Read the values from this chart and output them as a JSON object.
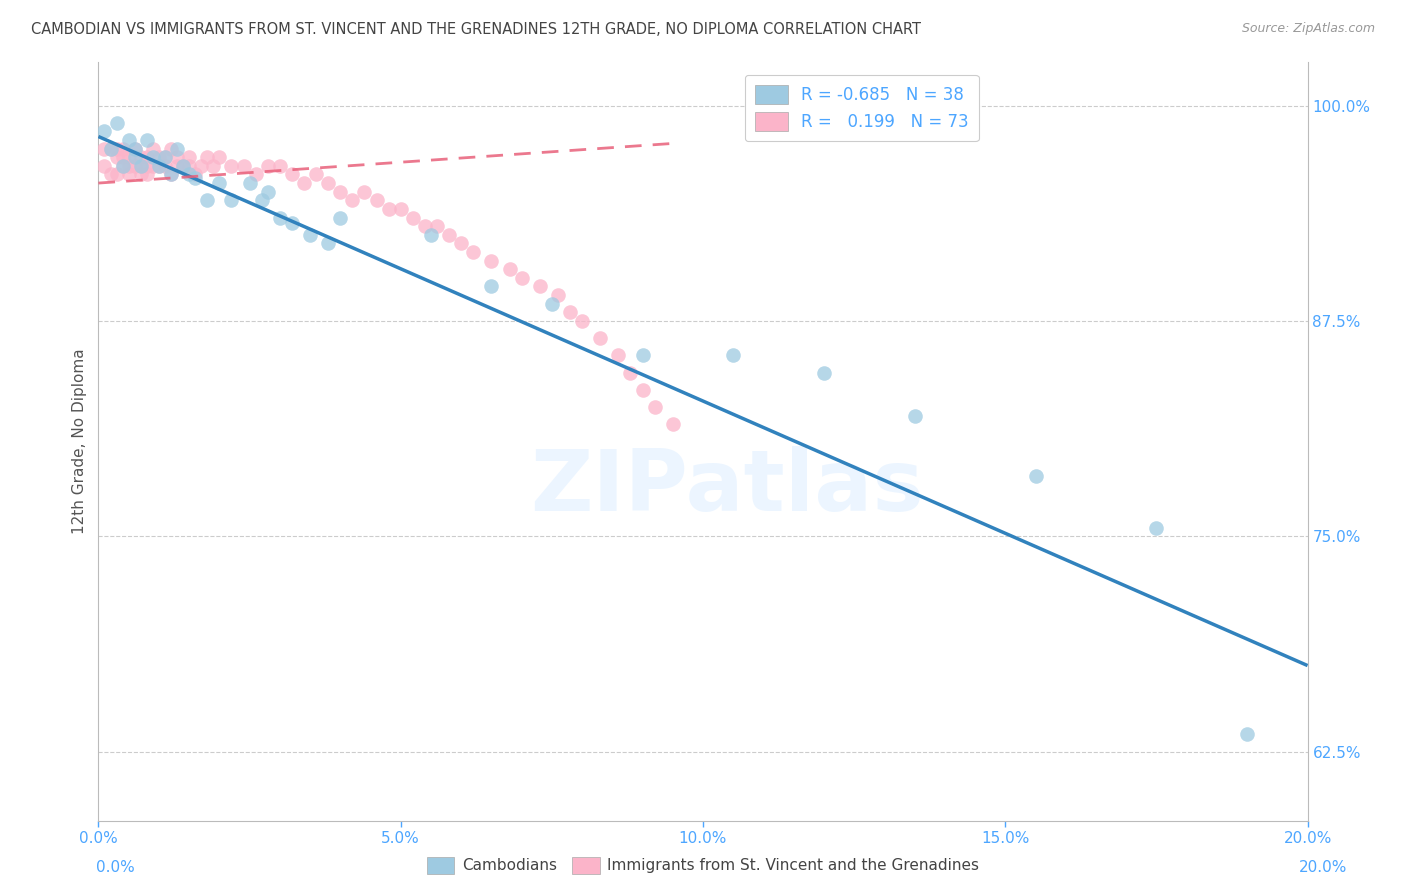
{
  "title": "CAMBODIAN VS IMMIGRANTS FROM ST. VINCENT AND THE GRENADINES 12TH GRADE, NO DIPLOMA CORRELATION CHART",
  "source": "Source: ZipAtlas.com",
  "ylabel": "12th Grade, No Diploma",
  "xlim": [
    0.0,
    0.2
  ],
  "ylim": [
    0.585,
    1.025
  ],
  "yticks": [
    0.625,
    0.75,
    0.875,
    1.0
  ],
  "ytick_labels": [
    "62.5%",
    "75.0%",
    "87.5%",
    "100.0%"
  ],
  "xticks": [
    0.0,
    0.05,
    0.1,
    0.15,
    0.2
  ],
  "xtick_labels": [
    "0.0%",
    "5.0%",
    "10.0%",
    "15.0%",
    "20.0%"
  ],
  "cambodian_R": -0.685,
  "cambodian_N": 38,
  "svg_R": 0.199,
  "svg_N": 73,
  "cambodian_color": "#9ecae1",
  "svg_color": "#fbb4c9",
  "cambodian_line_color": "#3182bd",
  "svg_line_color": "#e8607a",
  "background_color": "#ffffff",
  "grid_color": "#cccccc",
  "title_color": "#444444",
  "axis_color": "#4da6ff",
  "watermark": "ZIPatlas",
  "cam_scatter_x": [
    0.001,
    0.002,
    0.003,
    0.004,
    0.005,
    0.006,
    0.006,
    0.007,
    0.008,
    0.009,
    0.01,
    0.011,
    0.012,
    0.013,
    0.014,
    0.015,
    0.016,
    0.018,
    0.02,
    0.022,
    0.025,
    0.027,
    0.028,
    0.03,
    0.032,
    0.035,
    0.038,
    0.04,
    0.055,
    0.065,
    0.075,
    0.09,
    0.105,
    0.12,
    0.135,
    0.155,
    0.175,
    0.19
  ],
  "cam_scatter_y": [
    0.985,
    0.975,
    0.99,
    0.965,
    0.98,
    0.97,
    0.975,
    0.965,
    0.98,
    0.97,
    0.965,
    0.97,
    0.96,
    0.975,
    0.965,
    0.96,
    0.958,
    0.945,
    0.955,
    0.945,
    0.955,
    0.945,
    0.95,
    0.935,
    0.932,
    0.925,
    0.92,
    0.935,
    0.925,
    0.895,
    0.885,
    0.855,
    0.855,
    0.845,
    0.82,
    0.785,
    0.755,
    0.635
  ],
  "svg_scatter_x": [
    0.001,
    0.001,
    0.002,
    0.002,
    0.003,
    0.003,
    0.003,
    0.004,
    0.004,
    0.004,
    0.005,
    0.005,
    0.005,
    0.006,
    0.006,
    0.007,
    0.007,
    0.007,
    0.008,
    0.008,
    0.008,
    0.009,
    0.009,
    0.01,
    0.01,
    0.011,
    0.011,
    0.012,
    0.012,
    0.013,
    0.013,
    0.014,
    0.015,
    0.015,
    0.016,
    0.017,
    0.018,
    0.019,
    0.02,
    0.022,
    0.024,
    0.026,
    0.028,
    0.03,
    0.032,
    0.034,
    0.036,
    0.038,
    0.04,
    0.042,
    0.044,
    0.046,
    0.048,
    0.05,
    0.052,
    0.054,
    0.056,
    0.058,
    0.06,
    0.062,
    0.065,
    0.068,
    0.07,
    0.073,
    0.076,
    0.078,
    0.08,
    0.083,
    0.086,
    0.088,
    0.09,
    0.092,
    0.095
  ],
  "svg_scatter_y": [
    0.975,
    0.965,
    0.975,
    0.96,
    0.97,
    0.975,
    0.96,
    0.97,
    0.965,
    0.975,
    0.965,
    0.97,
    0.96,
    0.975,
    0.965,
    0.97,
    0.96,
    0.965,
    0.97,
    0.965,
    0.96,
    0.975,
    0.965,
    0.97,
    0.965,
    0.97,
    0.965,
    0.975,
    0.96,
    0.965,
    0.97,
    0.965,
    0.97,
    0.965,
    0.96,
    0.965,
    0.97,
    0.965,
    0.97,
    0.965,
    0.965,
    0.96,
    0.965,
    0.965,
    0.96,
    0.955,
    0.96,
    0.955,
    0.95,
    0.945,
    0.95,
    0.945,
    0.94,
    0.94,
    0.935,
    0.93,
    0.93,
    0.925,
    0.92,
    0.915,
    0.91,
    0.905,
    0.9,
    0.895,
    0.89,
    0.88,
    0.875,
    0.865,
    0.855,
    0.845,
    0.835,
    0.825,
    0.815
  ],
  "cam_line_x0": 0.0,
  "cam_line_x1": 0.2,
  "cam_line_y0": 0.982,
  "cam_line_y1": 0.675,
  "svg_line_x0": 0.0,
  "svg_line_x1": 0.095,
  "svg_line_y0": 0.955,
  "svg_line_y1": 0.978
}
